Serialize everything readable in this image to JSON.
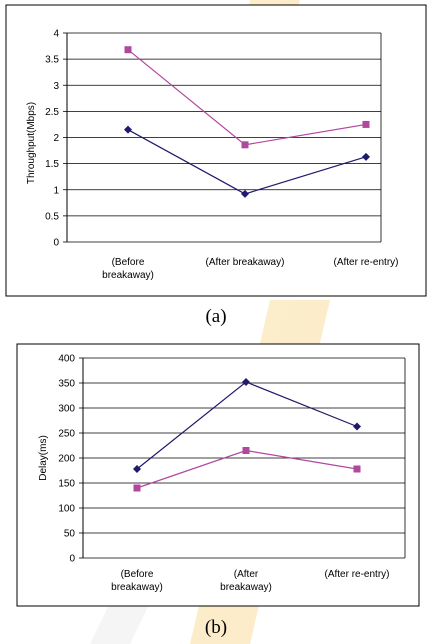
{
  "captions": [
    "(a)",
    "(b)"
  ],
  "styles": {
    "series_colors": [
      "#1f1a6b",
      "#b0489e"
    ],
    "grid_color": "#000000",
    "frame_color": "#000000",
    "background": "#ffffff"
  },
  "chart_data": [
    {
      "type": "line",
      "categories": [
        [
          "(Before",
          "breakaway)"
        ],
        [
          "(After breakaway)"
        ],
        [
          "(After re-entry)"
        ]
      ],
      "ylabel": "Throughput(Mbps)",
      "ylim": [
        0,
        4
      ],
      "yticks": [
        "0",
        "0.5",
        "1",
        "1.5",
        "2",
        "2.5",
        "3",
        "3.5",
        "4"
      ],
      "grid": true,
      "legend": "none",
      "series": [
        {
          "values": [
            2.15,
            0.92,
            1.63
          ],
          "marker": "diamond"
        },
        {
          "values": [
            3.68,
            1.86,
            2.25
          ],
          "marker": "square"
        }
      ]
    },
    {
      "type": "line",
      "categories": [
        [
          "(Before",
          "breakaway)"
        ],
        [
          "(After",
          "breakaway)"
        ],
        [
          "(After re-entry)"
        ]
      ],
      "ylabel": "Delay(ms)",
      "ylim": [
        0,
        400
      ],
      "yticks": [
        "0",
        "50",
        "100",
        "150",
        "200",
        "250",
        "300",
        "350",
        "400"
      ],
      "grid": true,
      "legend": "none",
      "series": [
        {
          "values": [
            178,
            352,
            263
          ],
          "marker": "diamond"
        },
        {
          "values": [
            140,
            215,
            178
          ],
          "marker": "square"
        }
      ]
    }
  ]
}
